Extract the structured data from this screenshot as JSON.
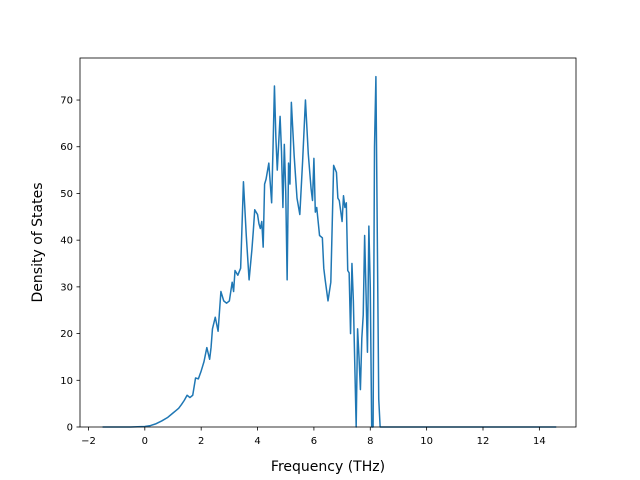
{
  "chart_data": {
    "type": "line",
    "title": "",
    "xlabel": "Frequency (THz)",
    "ylabel": "Density of States",
    "xlim": [
      -2.3,
      15.3
    ],
    "ylim": [
      0,
      79
    ],
    "xticks": [
      -2,
      0,
      2,
      4,
      6,
      8,
      10,
      12,
      14
    ],
    "xtick_labels": [
      "−2",
      "0",
      "2",
      "4",
      "6",
      "8",
      "10",
      "12",
      "14"
    ],
    "yticks": [
      0,
      10,
      20,
      30,
      40,
      50,
      60,
      70
    ],
    "ytick_labels": [
      "0",
      "10",
      "20",
      "30",
      "40",
      "50",
      "60",
      "70"
    ],
    "grid": false,
    "legend": "none",
    "series": [
      {
        "color": "#1f77b4",
        "x": [
          -1.5,
          -1.0,
          -0.5,
          0.0,
          0.2,
          0.4,
          0.6,
          0.8,
          1.0,
          1.1,
          1.2,
          1.3,
          1.4,
          1.5,
          1.6,
          1.7,
          1.8,
          1.9,
          2.0,
          2.05,
          2.1,
          2.2,
          2.3,
          2.35,
          2.4,
          2.5,
          2.6,
          2.7,
          2.8,
          2.9,
          3.0,
          3.1,
          3.15,
          3.2,
          3.3,
          3.4,
          3.5,
          3.6,
          3.7,
          3.8,
          3.85,
          3.9,
          4.0,
          4.05,
          4.1,
          4.15,
          4.2,
          4.25,
          4.3,
          4.4,
          4.5,
          4.55,
          4.6,
          4.65,
          4.7,
          4.8,
          4.85,
          4.9,
          4.95,
          5.0,
          5.05,
          5.1,
          5.15,
          5.2,
          5.3,
          5.4,
          5.5,
          5.6,
          5.7,
          5.8,
          5.9,
          5.95,
          6.0,
          6.05,
          6.1,
          6.15,
          6.2,
          6.3,
          6.35,
          6.4,
          6.5,
          6.6,
          6.7,
          6.8,
          6.85,
          6.9,
          7.0,
          7.05,
          7.1,
          7.15,
          7.2,
          7.25,
          7.3,
          7.35,
          7.4,
          7.5,
          7.55,
          7.6,
          7.65,
          7.7,
          7.75,
          7.8,
          7.9,
          7.95,
          8.0,
          8.05,
          8.1,
          8.15,
          8.2,
          8.3,
          8.35,
          8.4,
          8.45,
          8.5,
          8.55,
          8.6,
          8.65,
          8.7,
          8.75,
          8.8,
          8.85,
          8.9,
          8.95,
          9.0,
          9.5,
          10.0,
          11.0,
          12.0,
          13.0,
          14.0,
          14.6
        ],
        "y": [
          0,
          0,
          0,
          0.1,
          0.3,
          0.7,
          1.3,
          2.0,
          3.0,
          3.5,
          4.0,
          4.8,
          5.7,
          6.8,
          6.3,
          6.8,
          10.5,
          10.3,
          12.0,
          13.0,
          14.0,
          17.0,
          14.5,
          17.0,
          21.0,
          23.5,
          20.5,
          29.0,
          27.0,
          26.5,
          27.0,
          31.0,
          29.0,
          33.5,
          32.5,
          34.0,
          52.5,
          41.0,
          31.5,
          38.0,
          42.0,
          46.5,
          45.5,
          43.5,
          42.5,
          44.0,
          38.5,
          52.0,
          53.0,
          56.5,
          48.0,
          60.0,
          73.0,
          62.0,
          55.0,
          66.5,
          59.0,
          47.0,
          60.5,
          50.5,
          31.5,
          56.5,
          52.0,
          69.5,
          58.0,
          49.0,
          45.5,
          57.0,
          70.0,
          58.5,
          51.0,
          48.5,
          57.5,
          46.0,
          47.0,
          44.0,
          41.0,
          40.5,
          34.0,
          31.5,
          27.0,
          31.0,
          56.0,
          54.5,
          49.0,
          48.5,
          44.0,
          49.5,
          47.0,
          48.0,
          33.5,
          33.0,
          20.0,
          35.0,
          27.0,
          0.0,
          21.0,
          15.0,
          8.0,
          19.0,
          24.0,
          41.0,
          16.0,
          43.0,
          30.0,
          0.0,
          0.0,
          60.0,
          75.0,
          6.0,
          0.0,
          0.0,
          0.0,
          0.0,
          0.0,
          0.0,
          0.0,
          0.0,
          0.0,
          0.0,
          0.0,
          0.0,
          0.0,
          0.0,
          0.0,
          0.0,
          0.0,
          0.0,
          0.0,
          0.0,
          0.0
        ]
      }
    ]
  }
}
